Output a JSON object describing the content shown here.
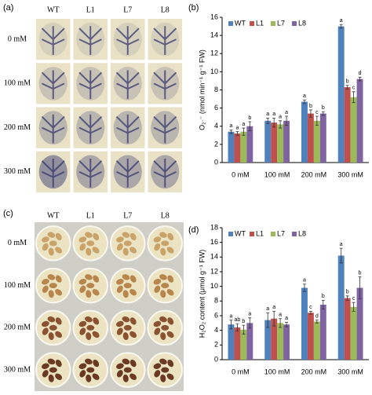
{
  "panels": [
    {
      "label": "(a)",
      "columns": [
        "WT",
        "L1",
        "L7",
        "L8"
      ],
      "rows": [
        "0 mM",
        "100 mM",
        "200 mM",
        "300 mM"
      ]
    },
    {
      "label": "(c)",
      "columns": [
        "WT",
        "L1",
        "L7",
        "L8"
      ],
      "rows": [
        "0 mM",
        "100 mM",
        "200 mM",
        "300 mM"
      ]
    }
  ],
  "chart_data": [
    {
      "type": "bar",
      "panel_label": "(b)",
      "y_label": "O₂·⁻ (nmol min⁻¹ g⁻¹ FW)",
      "categories": [
        "0 mM",
        "100 mM",
        "200 mM",
        "300 mM"
      ],
      "series": [
        {
          "name": "WT",
          "color": "#4f81bd",
          "values": [
            3.4,
            4.6,
            6.7,
            15.0
          ],
          "errors": [
            0.2,
            0.3,
            0.2,
            0.2
          ],
          "letters": [
            "a",
            "a",
            "a",
            "a"
          ]
        },
        {
          "name": "L1",
          "color": "#c0504d",
          "values": [
            3.2,
            4.4,
            5.4,
            8.3
          ],
          "errors": [
            0.2,
            0.5,
            0.4,
            0.2
          ],
          "letters": [
            "a",
            "a",
            "b",
            "b"
          ]
        },
        {
          "name": "L7",
          "color": "#9bbb59",
          "values": [
            3.4,
            4.2,
            4.6,
            7.2
          ],
          "errors": [
            0.4,
            0.4,
            0.5,
            0.6
          ],
          "letters": [
            "a",
            "a",
            "c",
            "c"
          ]
        },
        {
          "name": "L8",
          "color": "#8064a2",
          "values": [
            4.0,
            4.6,
            5.4,
            9.2
          ],
          "errors": [
            0.5,
            0.5,
            0.2,
            0.2
          ],
          "letters": [
            "b",
            "a",
            "b",
            "d"
          ]
        }
      ],
      "ylim": [
        0,
        16
      ],
      "yticks": [
        0,
        2,
        4,
        6,
        8,
        10,
        12,
        14,
        16
      ],
      "legend": "upper left"
    },
    {
      "type": "bar",
      "panel_label": "(d)",
      "y_label": "H₂O₂ content (μmol g⁻¹ FW)",
      "categories": [
        "0 mM",
        "100 mM",
        "200 mM",
        "300 mM"
      ],
      "series": [
        {
          "name": "WT",
          "color": "#4f81bd",
          "values": [
            4.8,
            5.4,
            9.8,
            14.2
          ],
          "errors": [
            0.6,
            1.0,
            0.5,
            1.0
          ],
          "letters": [
            "a",
            "a",
            "a",
            "a"
          ]
        },
        {
          "name": "L1",
          "color": "#c0504d",
          "values": [
            4.4,
            5.6,
            6.4,
            8.4
          ],
          "errors": [
            0.5,
            1.0,
            0.2,
            0.3
          ],
          "letters": [
            "ab",
            "a",
            "c",
            "b"
          ]
        },
        {
          "name": "L7",
          "color": "#9bbb59",
          "values": [
            4.1,
            5.0,
            5.2,
            7.2
          ],
          "errors": [
            0.6,
            0.6,
            0.2,
            0.6
          ],
          "letters": [
            "b",
            "a",
            "d",
            "c"
          ]
        },
        {
          "name": "L8",
          "color": "#8064a2",
          "values": [
            5.0,
            4.8,
            7.5,
            9.8
          ],
          "errors": [
            0.7,
            0.3,
            0.6,
            1.5
          ],
          "letters": [
            "a",
            "a",
            "b",
            "b"
          ]
        }
      ],
      "ylim": [
        0,
        18
      ],
      "yticks": [
        0,
        2,
        4,
        6,
        8,
        10,
        12,
        14,
        16,
        18
      ],
      "legend": "upper left"
    }
  ]
}
